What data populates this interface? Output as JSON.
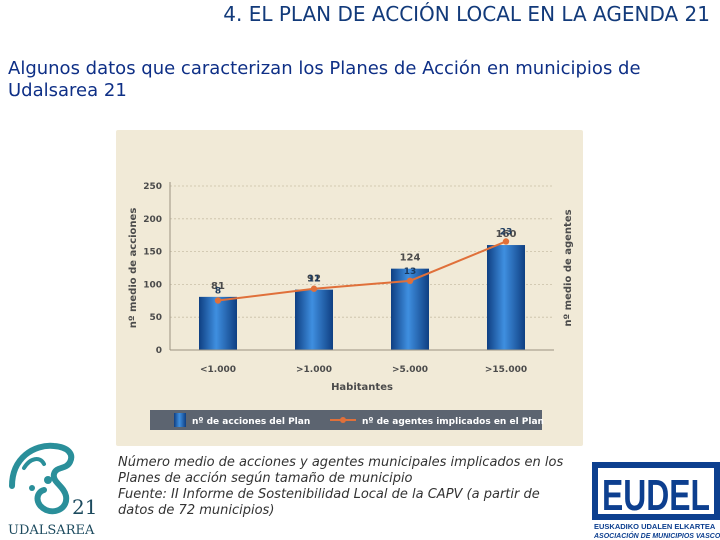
{
  "slide": {
    "title": "4. EL PLAN DE ACCIÓN LOCAL EN LA AGENDA 21",
    "subtitle": "Algunos datos que caracterizan los Planes de Acción en municipios de Udalsarea 21"
  },
  "chart_data": {
    "type": "bar",
    "title": "",
    "categories": [
      "<1.000",
      ">1.000",
      ">5.000",
      ">15.000"
    ],
    "xlabel": "Habitantes",
    "ylabel": "nº medio de acciones",
    "y2label": "nº medio de agentes",
    "ylim": [
      0,
      250
    ],
    "yticks": [
      0,
      50,
      100,
      150,
      200,
      250
    ],
    "grid": true,
    "legend_position": "bottom",
    "series": [
      {
        "name": "nº de acciones del Plan",
        "kind": "bar",
        "values": [
          81,
          92,
          124,
          160
        ],
        "color": "#1f63b3"
      },
      {
        "name": "nº de agentes implicados en el Plan",
        "kind": "line",
        "values": [
          8,
          11,
          13,
          23
        ],
        "color": "#e0703a"
      }
    ]
  },
  "caption": {
    "line1": "Número medio de acciones y agentes municipales implicados en los",
    "line2": "Planes de acción según tamaño de municipio",
    "line3": "Fuente: II Informe de Sostenibilidad Local de la CAPV (a partir de",
    "line4": "datos de 72 municipios)"
  },
  "logos": {
    "udalsarea_number": "21",
    "udalsarea_name": "UDALSAREA",
    "eudel_name": "EUDEL",
    "eudel_line1": "EUSKADIKO UDALEN ELKARTEA",
    "eudel_line2": "ASOCIACIÓN DE MUNICIPIOS VASCOS"
  },
  "colors": {
    "title": "#123a7a",
    "chart_background": "#f1ead7",
    "bar": "#1f63b3",
    "line": "#e0703a",
    "eudel_blue": "#0d3f8f",
    "udalsarea_teal": "#2a8f9a"
  }
}
